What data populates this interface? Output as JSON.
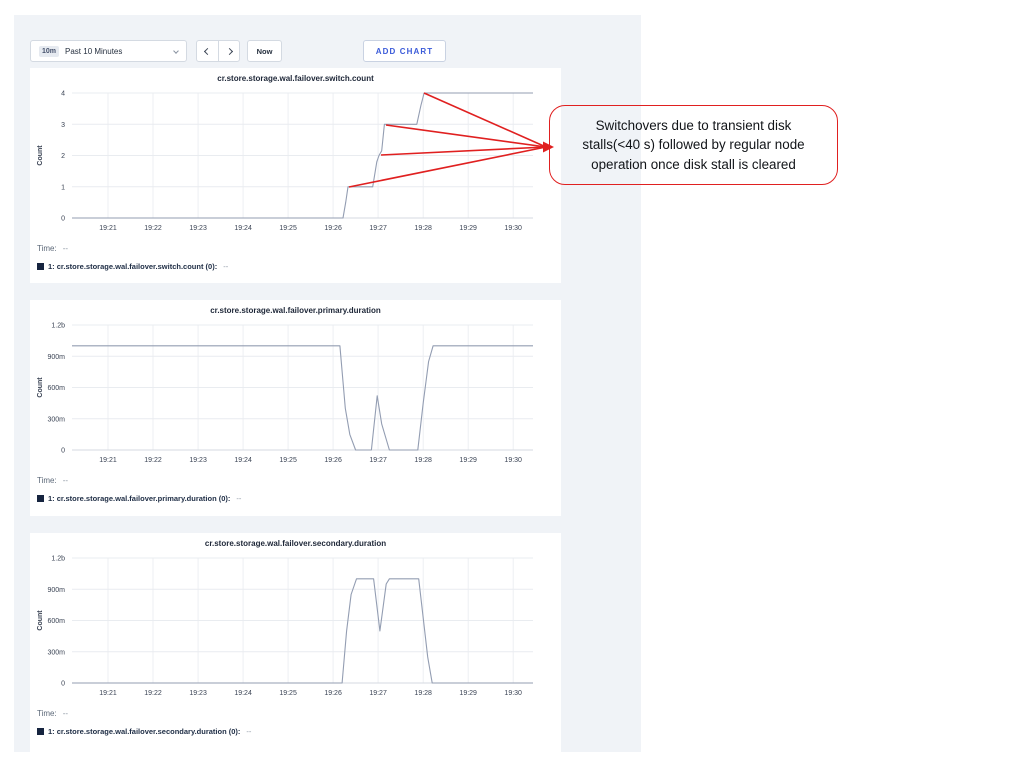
{
  "theme": {
    "panel_bg": "#f0f3f7",
    "line_color": "#939db2",
    "grid_color": "#e9ecf0",
    "vgrid_color": "#edeff3",
    "axis_color": "#d6dae0",
    "tick_color": "#3a4354",
    "title_color": "#1d2637",
    "legend_swatch_color": "#16243f",
    "accent_blue": "#3b5bd9",
    "annotation_red": "#e02020"
  },
  "toolbar": {
    "range_badge": "10m",
    "range_label": "Past 10 Minutes",
    "now_label": "Now",
    "add_chart_label": "ADD CHART"
  },
  "annotation": {
    "text": "Switchovers due to transient disk stalls(<40 s) followed by regular node operation once disk stall is cleared",
    "arrow_origin": [
      546,
      147
    ],
    "arrow_targets": [
      [
        424,
        93
      ],
      [
        386,
        125
      ],
      [
        381,
        155
      ],
      [
        349,
        187
      ]
    ]
  },
  "chart_data": [
    {
      "type": "line",
      "title": "cr.store.storage.wal.failover.switch.count",
      "ylabel": "Count",
      "xlim": [
        0.2,
        10.44
      ],
      "xticks": [
        1,
        2,
        3,
        4,
        5,
        6,
        7,
        8,
        9,
        10
      ],
      "xtick_labels": [
        "19:21",
        "19:22",
        "19:23",
        "19:24",
        "19:25",
        "19:26",
        "19:27",
        "19:28",
        "19:29",
        "19:30"
      ],
      "ylim": [
        0,
        4
      ],
      "yticks": [
        0,
        1,
        2,
        3,
        4
      ],
      "ytick_labels": [
        "0",
        "1",
        "2",
        "3",
        "4"
      ],
      "grid": true,
      "points": [
        [
          0.2,
          0
        ],
        [
          6.22,
          0
        ],
        [
          6.28,
          0.5
        ],
        [
          6.33,
          1
        ],
        [
          6.88,
          1
        ],
        [
          6.97,
          1.8
        ],
        [
          7.02,
          2
        ],
        [
          7.08,
          2.15
        ],
        [
          7.14,
          3
        ],
        [
          7.86,
          3
        ],
        [
          7.95,
          3.6
        ],
        [
          8.02,
          4
        ],
        [
          10.44,
          4
        ]
      ],
      "legend": {
        "time_label": "Time:",
        "time_value": "--",
        "series_label": "1: cr.store.storage.wal.failover.switch.count (0):",
        "series_value": "--"
      }
    },
    {
      "type": "line",
      "title": "cr.store.storage.wal.failover.primary.duration",
      "ylabel": "Count",
      "xlim": [
        0.2,
        10.44
      ],
      "xticks": [
        1,
        2,
        3,
        4,
        5,
        6,
        7,
        8,
        9,
        10
      ],
      "xtick_labels": [
        "19:21",
        "19:22",
        "19:23",
        "19:24",
        "19:25",
        "19:26",
        "19:27",
        "19:28",
        "19:29",
        "19:30"
      ],
      "ylim": [
        0,
        1.2
      ],
      "yticks": [
        0,
        0.3,
        0.6,
        0.9,
        1.2
      ],
      "ytick_labels": [
        "0",
        "300m",
        "600m",
        "900m",
        "1.2b"
      ],
      "grid": true,
      "points": [
        [
          0.2,
          1
        ],
        [
          6.15,
          1
        ],
        [
          6.27,
          0.4
        ],
        [
          6.37,
          0.15
        ],
        [
          6.5,
          0
        ],
        [
          6.85,
          0
        ],
        [
          6.98,
          0.52
        ],
        [
          7.08,
          0.25
        ],
        [
          7.25,
          0
        ],
        [
          7.88,
          0
        ],
        [
          8.0,
          0.45
        ],
        [
          8.12,
          0.85
        ],
        [
          8.22,
          1
        ],
        [
          10.44,
          1
        ]
      ],
      "legend": {
        "time_label": "Time:",
        "time_value": "--",
        "series_label": "1: cr.store.storage.wal.failover.primary.duration (0):",
        "series_value": "--"
      }
    },
    {
      "type": "line",
      "title": "cr.store.storage.wal.failover.secondary.duration",
      "ylabel": "Count",
      "xlim": [
        0.2,
        10.44
      ],
      "xticks": [
        1,
        2,
        3,
        4,
        5,
        6,
        7,
        8,
        9,
        10
      ],
      "xtick_labels": [
        "19:21",
        "19:22",
        "19:23",
        "19:24",
        "19:25",
        "19:26",
        "19:27",
        "19:28",
        "19:29",
        "19:30"
      ],
      "ylim": [
        0,
        1.2
      ],
      "yticks": [
        0,
        0.3,
        0.6,
        0.9,
        1.2
      ],
      "ytick_labels": [
        "0",
        "300m",
        "600m",
        "900m",
        "1.2b"
      ],
      "grid": true,
      "points": [
        [
          0.2,
          0
        ],
        [
          6.2,
          0
        ],
        [
          6.3,
          0.5
        ],
        [
          6.4,
          0.85
        ],
        [
          6.52,
          1
        ],
        [
          6.9,
          1
        ],
        [
          7.04,
          0.5
        ],
        [
          7.18,
          0.95
        ],
        [
          7.25,
          1
        ],
        [
          7.9,
          1
        ],
        [
          8.02,
          0.55
        ],
        [
          8.1,
          0.25
        ],
        [
          8.2,
          0
        ],
        [
          10.44,
          0
        ]
      ],
      "legend": {
        "time_label": "Time:",
        "time_value": "--",
        "series_label": "1: cr.store.storage.wal.failover.secondary.duration (0):",
        "series_value": "--"
      }
    }
  ]
}
